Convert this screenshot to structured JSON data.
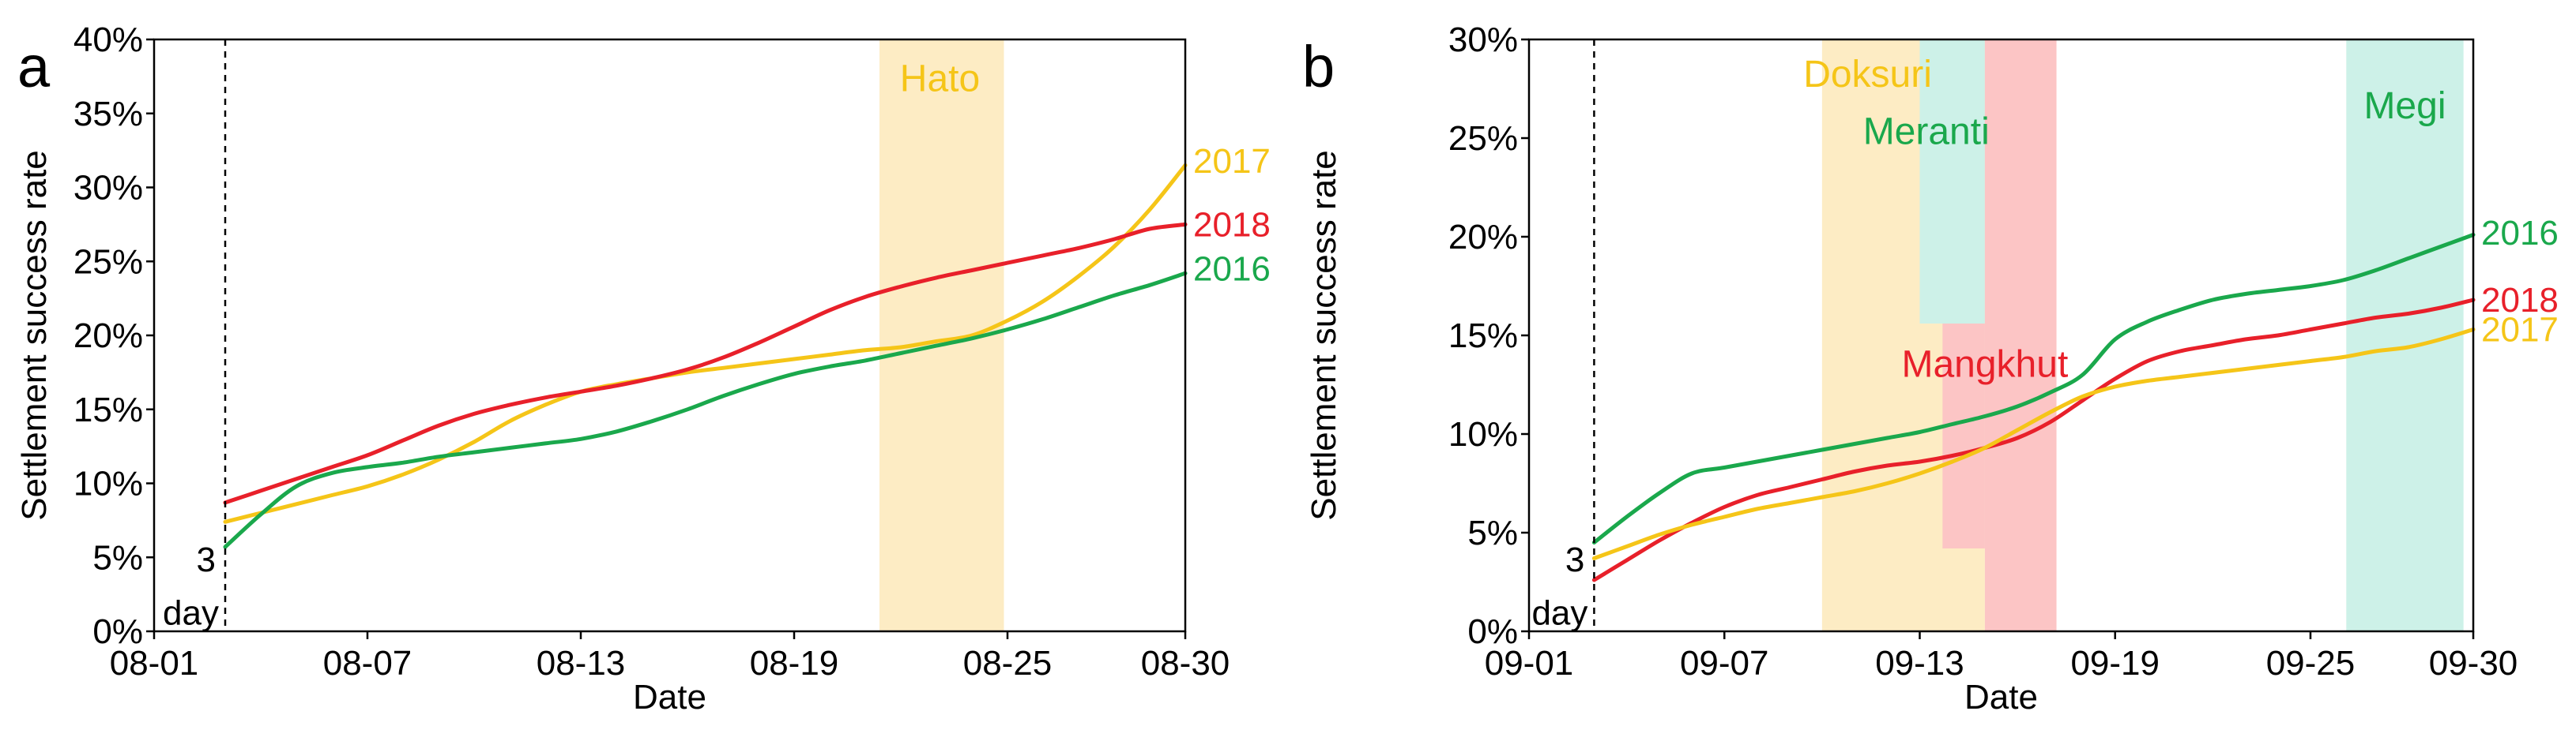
{
  "chart_data": [
    {
      "panel": "a",
      "type": "line",
      "xlabel": "Date",
      "ylabel": "Settlement success rate",
      "x_ticks": [
        "08-01",
        "08-07",
        "08-13",
        "08-19",
        "08-25",
        "08-30"
      ],
      "x_tick_days": [
        1,
        7,
        13,
        19,
        25,
        30
      ],
      "xlim": [
        1,
        30
      ],
      "ylim": [
        0,
        40
      ],
      "y_ticks": [
        "0%",
        "5%",
        "10%",
        "15%",
        "20%",
        "25%",
        "30%",
        "35%",
        "40%"
      ],
      "marker": {
        "x": 3,
        "label_line1": "3",
        "label_line2": "day"
      },
      "events": [
        {
          "name": "Hato",
          "x_start": 21.4,
          "x_end": 24.9,
          "y_top": 40,
          "color": "#fdecc4",
          "text_color": "#f5c518",
          "label_x": 23.1,
          "label_y": 36.5
        }
      ],
      "series": [
        {
          "name": "2017",
          "color": "#f5c518",
          "label_y": 31.8,
          "x": [
            3,
            4,
            5,
            6,
            7,
            8,
            9,
            10,
            11,
            12,
            13,
            14,
            15,
            16,
            17,
            18,
            19,
            20,
            21,
            22,
            23,
            24,
            25,
            26,
            27,
            28,
            29,
            30
          ],
          "y": [
            7.4,
            8.0,
            8.6,
            9.2,
            9.8,
            10.6,
            11.6,
            12.8,
            14.2,
            15.3,
            16.2,
            16.7,
            17.1,
            17.5,
            17.8,
            18.1,
            18.4,
            18.7,
            19.0,
            19.2,
            19.6,
            20.0,
            21.0,
            22.3,
            24.0,
            26.0,
            28.5,
            31.5
          ]
        },
        {
          "name": "2018",
          "color": "#e8202a",
          "label_y": 27.5,
          "x": [
            3,
            4,
            5,
            6,
            7,
            8,
            9,
            10,
            11,
            12,
            13,
            14,
            15,
            16,
            17,
            18,
            19,
            20,
            21,
            22,
            23,
            24,
            25,
            26,
            27,
            28,
            29,
            30
          ],
          "y": [
            8.7,
            9.5,
            10.3,
            11.1,
            11.9,
            12.9,
            13.9,
            14.7,
            15.3,
            15.8,
            16.2,
            16.6,
            17.1,
            17.7,
            18.5,
            19.5,
            20.6,
            21.7,
            22.6,
            23.3,
            23.9,
            24.4,
            24.9,
            25.4,
            25.9,
            26.5,
            27.2,
            27.5
          ]
        },
        {
          "name": "2016",
          "color": "#1aa84c",
          "label_y": 24.5,
          "x": [
            3,
            4,
            5,
            6,
            7,
            8,
            9,
            10,
            11,
            12,
            13,
            14,
            15,
            16,
            17,
            18,
            19,
            20,
            21,
            22,
            23,
            24,
            25,
            26,
            27,
            28,
            29,
            30
          ],
          "y": [
            5.7,
            7.9,
            9.8,
            10.7,
            11.1,
            11.4,
            11.8,
            12.1,
            12.4,
            12.7,
            13.0,
            13.5,
            14.2,
            15.0,
            15.9,
            16.7,
            17.4,
            17.9,
            18.3,
            18.8,
            19.3,
            19.8,
            20.4,
            21.1,
            21.9,
            22.7,
            23.4,
            24.2
          ]
        }
      ]
    },
    {
      "panel": "b",
      "type": "line",
      "xlabel": "Date",
      "ylabel": "Settlement success rate",
      "x_ticks": [
        "09-01",
        "09-07",
        "09-13",
        "09-19",
        "09-25",
        "09-30"
      ],
      "x_tick_days": [
        1,
        7,
        13,
        19,
        25,
        30
      ],
      "xlim": [
        1,
        30
      ],
      "ylim": [
        0,
        30
      ],
      "y_ticks": [
        "0%",
        "5%",
        "10%",
        "15%",
        "20%",
        "25%",
        "30%"
      ],
      "marker": {
        "x": 3,
        "label_line1": "3",
        "label_line2": "day"
      },
      "events": [
        {
          "name": "Doksuri",
          "x_start": 10.0,
          "x_end": 15.0,
          "y_top": 30,
          "color": "#fdecc4",
          "text_color": "#f5c518",
          "label_x": 11.4,
          "label_y": 27.6
        },
        {
          "name": "Meranti",
          "x_start": 13.0,
          "x_end": 15.0,
          "y_bottom": 15.6,
          "y_top": 30,
          "color": "#cdf1e8",
          "text_color": "#1aa84c",
          "label_x": 13.2,
          "label_y": 24.7
        },
        {
          "name": "Mangkhut",
          "x_start": 15.0,
          "x_end": 17.2,
          "y_top": 30,
          "color": "#fcc5c5",
          "text_color": "#e8202a",
          "label_x": 15.0,
          "label_y": 12.9
        },
        {
          "name": "Mangkhut-ext",
          "x_start": 13.7,
          "x_end": 15.0,
          "y_top": 15.6,
          "y_bottom": 4.2,
          "color": "#fcc5c5",
          "text_color": "#e8202a"
        },
        {
          "name": "Megi",
          "x_start": 26.1,
          "x_end": 29.7,
          "y_top": 30,
          "color": "#cdf1e8",
          "text_color": "#1aa84c",
          "label_x": 27.9,
          "label_y": 26.0
        }
      ],
      "series": [
        {
          "name": "2016",
          "color": "#1aa84c",
          "label_y": 20.2,
          "x": [
            3,
            4,
            5,
            6,
            7,
            8,
            9,
            10,
            11,
            12,
            13,
            14,
            15,
            16,
            17,
            18,
            19,
            20,
            21,
            22,
            23,
            24,
            25,
            26,
            27,
            28,
            29,
            30
          ],
          "y": [
            4.5,
            5.8,
            7.0,
            8.0,
            8.3,
            8.6,
            8.9,
            9.2,
            9.5,
            9.8,
            10.1,
            10.5,
            10.9,
            11.4,
            12.1,
            13.0,
            14.8,
            15.7,
            16.3,
            16.8,
            17.1,
            17.3,
            17.5,
            17.8,
            18.3,
            18.9,
            19.5,
            20.1
          ]
        },
        {
          "name": "2018",
          "color": "#e8202a",
          "label_y": 16.8,
          "x": [
            3,
            4,
            5,
            6,
            7,
            8,
            9,
            10,
            11,
            12,
            13,
            14,
            15,
            16,
            17,
            18,
            19,
            20,
            21,
            22,
            23,
            24,
            25,
            26,
            27,
            28,
            29,
            30
          ],
          "y": [
            2.6,
            3.6,
            4.6,
            5.5,
            6.3,
            6.9,
            7.3,
            7.7,
            8.1,
            8.4,
            8.6,
            8.9,
            9.3,
            9.8,
            10.6,
            11.7,
            12.8,
            13.7,
            14.2,
            14.5,
            14.8,
            15.0,
            15.3,
            15.6,
            15.9,
            16.1,
            16.4,
            16.8
          ]
        },
        {
          "name": "2017",
          "color": "#f5c518",
          "label_y": 15.3,
          "x": [
            3,
            4,
            5,
            6,
            7,
            8,
            9,
            10,
            11,
            12,
            13,
            14,
            15,
            16,
            17,
            18,
            19,
            20,
            21,
            22,
            23,
            24,
            25,
            26,
            27,
            28,
            29,
            30
          ],
          "y": [
            3.7,
            4.3,
            4.9,
            5.4,
            5.8,
            6.2,
            6.5,
            6.8,
            7.1,
            7.5,
            8.0,
            8.6,
            9.3,
            10.2,
            11.1,
            11.9,
            12.4,
            12.7,
            12.9,
            13.1,
            13.3,
            13.5,
            13.7,
            13.9,
            14.2,
            14.4,
            14.8,
            15.3
          ]
        }
      ]
    }
  ]
}
